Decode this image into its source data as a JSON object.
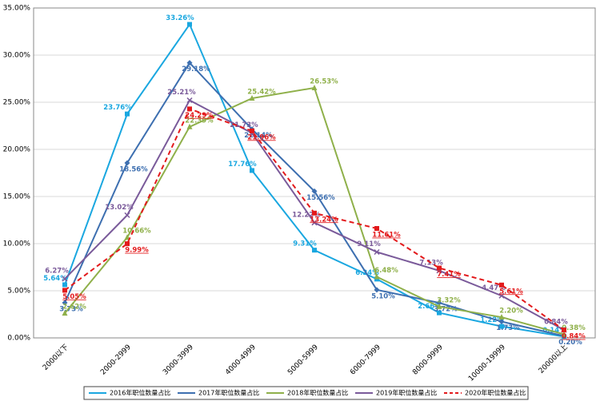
{
  "chart_data": {
    "type": "line",
    "categories": [
      "2000以下",
      "2000-2999",
      "3000-3999",
      "4000-4999",
      "5000-5999",
      "6000-7999",
      "8000-9999",
      "10000-19999",
      "20000以上"
    ],
    "ylim": [
      0,
      35
    ],
    "yticks": [
      {
        "value": 0,
        "label": "0.00%"
      },
      {
        "value": 5,
        "label": "5.00%"
      },
      {
        "value": 10,
        "label": "10.00%"
      },
      {
        "value": 15,
        "label": "15.00%"
      },
      {
        "value": 20,
        "label": "20.00%"
      },
      {
        "value": 25,
        "label": "25.00%"
      },
      {
        "value": 30,
        "label": "30.00%"
      },
      {
        "value": 35,
        "label": "35.00%"
      }
    ],
    "grid": true,
    "legend": "bottom",
    "series": [
      {
        "name": "2016年职位数量占比",
        "color": "#1aa7e0",
        "marker": "square",
        "values": [
          5.64,
          23.76,
          33.26,
          17.76,
          9.31,
          6.24,
          2.66,
          1.22,
          0.14
        ],
        "value_labels": [
          "5.64%",
          "23.76%",
          "33.26%",
          "17.76%",
          "9.31%",
          "6.24%",
          "2.66%",
          "1.22%",
          "0.14%"
        ]
      },
      {
        "name": "2017年职位数量占比",
        "color": "#3d6fb0",
        "marker": "diamond",
        "values": [
          3.73,
          18.56,
          29.18,
          22.14,
          15.56,
          5.1,
          3.72,
          1.73,
          0.2
        ],
        "value_labels": [
          "3.73%",
          "18.56%",
          "29.18%",
          "22.14%",
          "15.56%",
          "5.10%",
          "3.72%",
          "1.73%",
          "0.20%"
        ]
      },
      {
        "name": "2018年职位数量占比",
        "color": "#8fb04a",
        "marker": "triangle",
        "values": [
          2.62,
          10.66,
          22.39,
          25.42,
          26.53,
          6.48,
          3.32,
          2.2,
          0.38
        ],
        "value_labels": [
          "2.62%",
          "10.66%",
          "22.39%",
          "25.42%",
          "26.53%",
          "6.48%",
          "3.32%",
          "2.20%",
          "0.38%"
        ]
      },
      {
        "name": "2019年职位数量占比",
        "color": "#7a5a9a",
        "marker": "x",
        "values": [
          6.27,
          13.02,
          25.21,
          21.73,
          12.22,
          9.11,
          7.13,
          4.47,
          0.84
        ],
        "value_labels": [
          "6.27%",
          "13.02%",
          "25.21%",
          "21.73%",
          "12.22%",
          "9.11%",
          "7.13%",
          "4.47%",
          "0.84%"
        ]
      },
      {
        "name": "2020年职位数量占比",
        "color": "#e31a1c",
        "marker": "square",
        "dashed": true,
        "values": [
          5.05,
          9.99,
          24.29,
          21.96,
          13.24,
          11.61,
          7.41,
          5.61,
          0.84
        ],
        "value_labels": [
          "5.05%",
          "9.99%",
          "24.29%",
          "21.96%",
          "13.24%",
          "11.61%",
          "7.41%",
          "5.61%",
          "0.84%"
        ]
      }
    ]
  }
}
